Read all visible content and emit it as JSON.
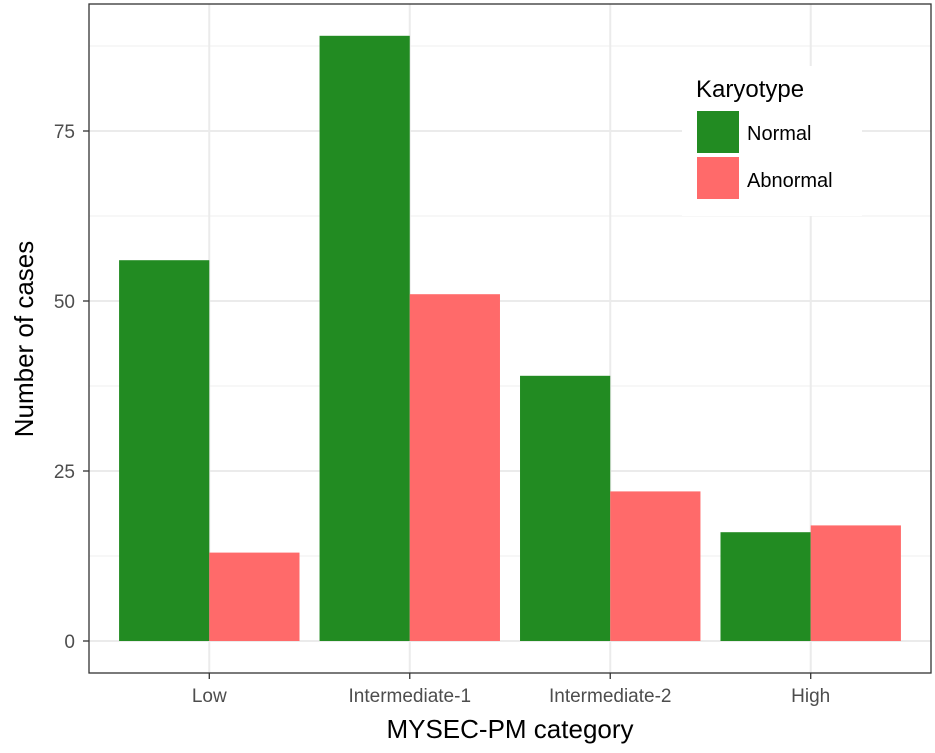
{
  "chart_data": {
    "type": "bar",
    "categories": [
      "Low",
      "Intermediate-1",
      "Intermediate-2",
      "High"
    ],
    "series": [
      {
        "name": "Normal",
        "values": [
          56,
          89,
          39,
          16
        ],
        "color": "#228B22"
      },
      {
        "name": "Abnormal",
        "values": [
          13,
          51,
          22,
          17
        ],
        "color": "#FF6A6A"
      }
    ],
    "xlabel": "MYSEC-PM category",
    "ylabel": "Number of cases",
    "ylim": [
      0,
      92
    ],
    "yticks": [
      0,
      25,
      50,
      75
    ],
    "legend": {
      "title": "Karyotype",
      "position": "top-right"
    },
    "grid": true
  }
}
